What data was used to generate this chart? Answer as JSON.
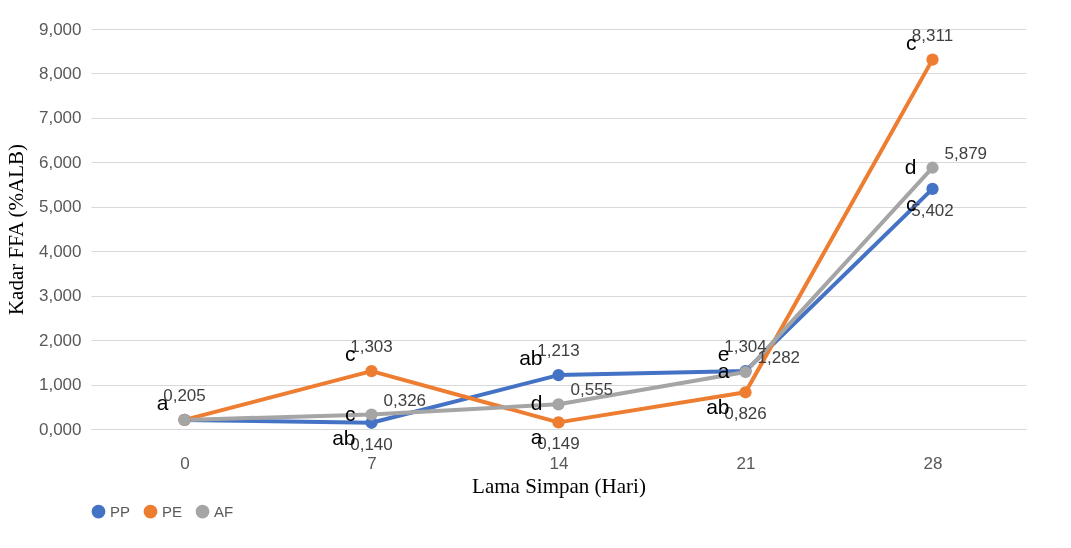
{
  "chart_data": {
    "type": "line",
    "xlabel": "Lama Simpan (Hari)",
    "ylabel": "Kadar FFA (%ALB)",
    "x": [
      0,
      7,
      14,
      21,
      28
    ],
    "xlim": [
      -3.5,
      31.5
    ],
    "xticks": [
      0,
      7,
      14,
      21,
      28
    ],
    "ylim": [
      0,
      9
    ],
    "yticks": [
      {
        "value": 0,
        "label": "0,000"
      },
      {
        "value": 1,
        "label": "1,000"
      },
      {
        "value": 2,
        "label": "2,000"
      },
      {
        "value": 3,
        "label": "3,000"
      },
      {
        "value": 4,
        "label": "4,000"
      },
      {
        "value": 5,
        "label": "5,000"
      },
      {
        "value": 6,
        "label": "6,000"
      },
      {
        "value": 7,
        "label": "7,000"
      },
      {
        "value": 8,
        "label": "8,000"
      },
      {
        "value": 9,
        "label": "9,000"
      }
    ],
    "grid": "y",
    "legend": "bottom",
    "marker": "circle",
    "line_style": "solid",
    "series": [
      {
        "name": "PP",
        "color": "#4472c4",
        "values": [
          0.205,
          0.14,
          1.213,
          1.304,
          5.402
        ],
        "value_labels": [
          "0,205",
          "0,140",
          "1,213",
          "1,304",
          "5,402"
        ]
      },
      {
        "name": "PE",
        "color": "#ed7d31",
        "values": [
          0.205,
          1.303,
          0.149,
          0.826,
          8.311
        ],
        "value_labels": [
          null,
          "1,303",
          "0,149",
          "0,826",
          "8,311"
        ]
      },
      {
        "name": "AF",
        "color": "#a5a5a5",
        "values": [
          0.205,
          0.326,
          0.555,
          1.282,
          5.879
        ],
        "value_labels": [
          null,
          "0,326",
          "0,555",
          "1,282",
          "5,879"
        ]
      }
    ],
    "annotations": [
      {
        "text": "a",
        "x": 0,
        "y": 0.205
      },
      {
        "text": "c",
        "x": 7,
        "y": 0.326
      },
      {
        "text": "ab",
        "x": 7,
        "y": 0.14
      },
      {
        "text": "c",
        "x": 7,
        "y": 1.303
      },
      {
        "text": "ab",
        "x": 14,
        "y": 1.213
      },
      {
        "text": "a",
        "x": 14,
        "y": 0.149
      },
      {
        "text": "d",
        "x": 14,
        "y": 0.555
      },
      {
        "text": "a",
        "x": 21,
        "y": 1.282
      },
      {
        "text": "e",
        "x": 21,
        "y": 1.304
      },
      {
        "text": "ab",
        "x": 21,
        "y": 0.826
      },
      {
        "text": "c",
        "x": 28,
        "y": 8.311
      },
      {
        "text": "d",
        "x": 28,
        "y": 5.879
      },
      {
        "text": "c",
        "x": 28,
        "y": 5.402
      }
    ]
  }
}
